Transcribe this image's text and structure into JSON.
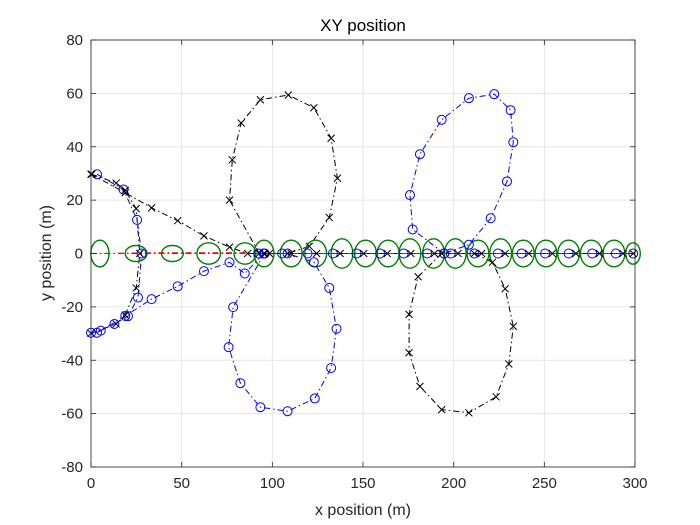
{
  "chart_data": {
    "type": "line",
    "title": "XY position",
    "xlabel": "x position (m)",
    "ylabel": "y position (m)",
    "xlim": [
      0,
      300
    ],
    "ylim": [
      -80,
      80
    ],
    "xticks": [
      0,
      50,
      100,
      150,
      200,
      250,
      300
    ],
    "yticks": [
      -80,
      -60,
      -40,
      -20,
      0,
      20,
      40,
      60,
      80
    ],
    "xtick_labels": [
      "0",
      "50",
      "100",
      "150",
      "200",
      "250",
      "300"
    ],
    "ytick_labels": [
      "-80",
      "-60",
      "-40",
      "-20",
      "0",
      "20",
      "40",
      "60",
      "80"
    ],
    "grid": true,
    "colors": {
      "blue": "#0000ff",
      "black": "#000000",
      "green": "#008000",
      "red": "#ff0000",
      "grid": "#e6e6e6",
      "axis": "#262626"
    },
    "series": [
      {
        "color": "#0000ff",
        "marker": "o",
        "linestyle": "dashdot",
        "x": [
          3.3,
          17.9,
          25.4,
          27.9,
          25.9,
          20.4,
          12.9,
          5.4,
          0.0
        ],
        "y": [
          29.7,
          24.0,
          12.6,
          0.0,
          -16.5,
          -23.5,
          -26.4,
          -28.9,
          -29.7
        ]
      },
      {
        "color": "#000000",
        "marker": "x",
        "linestyle": "dashdot",
        "x": [
          0.4,
          13.9,
          18.9,
          24.9,
          26.9,
          24.9,
          18.9,
          13.9,
          0.0
        ],
        "y": [
          29.7,
          26.4,
          23.7,
          16.8,
          0.0,
          -12.9,
          -23.1,
          -26.4,
          -29.9
        ]
      },
      {
        "color": "#000000",
        "marker": "x",
        "linestyle": "dashdot",
        "x": [
          0.0,
          18.9,
          33.4,
          47.8,
          62.3,
          76.4,
          86.4,
          95.3
        ],
        "y": [
          29.7,
          22.8,
          17.1,
          12.3,
          6.6,
          2.4,
          0.0,
          0.0
        ]
      },
      {
        "color": "#0000ff",
        "marker": "o",
        "linestyle": "dashdot",
        "x": [
          3.3,
          18.9,
          33.4,
          47.8,
          62.3,
          76.4,
          84.8,
          95.3
        ],
        "y": [
          -29.7,
          -23.4,
          -17.1,
          -12.3,
          -6.6,
          -3.3,
          -7.5,
          0.0
        ]
      },
      {
        "color": "#000000",
        "marker": "x",
        "linestyle": "dashdot",
        "x": [
          92.8,
          76.4,
          77.9,
          82.8,
          93.4,
          108.8,
          122.9,
          132.4,
          135.9,
          131.4,
          120.4,
          108.4,
          95.8
        ],
        "y": [
          0.0,
          20.0,
          35.1,
          48.9,
          57.6,
          59.4,
          54.6,
          43.2,
          28.2,
          13.5,
          2.7,
          0.0,
          0.0
        ]
      },
      {
        "color": "#0000ff",
        "marker": "o",
        "linestyle": "dashdot",
        "x": [
          95.8,
          78.4,
          75.9,
          82.4,
          93.4,
          108.4,
          123.4,
          132.4,
          135.4,
          131.4,
          122.9,
          108.4,
          95.3
        ],
        "y": [
          0.0,
          -20.1,
          -35.1,
          -48.6,
          -57.6,
          -59.1,
          -54.3,
          -42.9,
          -28.2,
          -12.9,
          -3.3,
          0.0,
          0.0
        ]
      },
      {
        "color": "#0000ff",
        "marker": "o",
        "linestyle": "dashdot",
        "x": [
          194.8,
          177.4,
          175.9,
          181.4,
          193.4,
          208.4,
          222.4,
          231.4,
          232.9,
          229.4,
          220.4,
          208.4,
          194.8
        ],
        "y": [
          0.0,
          9.0,
          21.9,
          37.2,
          50.1,
          58.2,
          59.7,
          53.7,
          41.7,
          27.0,
          13.2,
          3.3,
          0.0
        ]
      },
      {
        "color": "#000000",
        "marker": "x",
        "linestyle": "dashdot",
        "x": [
          193.4,
          180.4,
          175.4,
          175.4,
          181.4,
          193.4,
          208.4,
          223.4,
          230.4,
          232.9,
          228.4,
          221.4,
          211.4
        ],
        "y": [
          0.0,
          -8.7,
          -22.8,
          -37.2,
          -49.8,
          -58.5,
          -59.7,
          -53.7,
          -41.4,
          -27.3,
          -13.2,
          -3.3,
          0.0
        ]
      },
      {
        "color": "#0000ff",
        "marker": "o",
        "linestyle": "dashdot",
        "x": [
          92.4,
          105.4,
          119.4,
          133.4,
          146.4,
          159.4,
          172.4,
          185.4,
          198.4,
          211.4,
          224.4,
          237.4,
          250.4,
          263.4,
          276.4,
          289.4,
          299.0
        ],
        "y": [
          0.0,
          0.0,
          0.0,
          0.0,
          0.0,
          0.0,
          0.0,
          0.0,
          0.0,
          0.0,
          0.0,
          0.0,
          0.0,
          0.0,
          0.0,
          0.0,
          0.0
        ]
      },
      {
        "color": "#000000",
        "marker": "x",
        "linestyle": "dashdot",
        "x": [
          98.4,
          110.4,
          124.4,
          137.4,
          150.4,
          163.4,
          176.4,
          189.4,
          202.4,
          215.4,
          228.4,
          241.4,
          254.4,
          267.4,
          280.4,
          293.4,
          299.0
        ],
        "y": [
          0.0,
          0.0,
          0.0,
          0.0,
          0.0,
          0.0,
          0.0,
          0.0,
          0.0,
          0.0,
          0.0,
          0.0,
          0.0,
          0.0,
          0.0,
          0.0,
          0.0
        ]
      },
      {
        "color": "#ff0000",
        "marker": "",
        "linestyle": "dashdot",
        "x": [
          0.0,
          40.0,
          80.0,
          95.0
        ],
        "y": [
          0.0,
          0.3,
          0.3,
          0.0
        ]
      },
      {
        "color": "#008000",
        "marker": "",
        "linestyle": "dashdot",
        "x": [
          0.0,
          299.0
        ],
        "y": [
          0.0,
          0.0
        ]
      }
    ],
    "ellipses": {
      "color": "#008000",
      "centers_x": [
        4.9,
        24.9,
        44.9,
        64.9,
        84.9,
        95.4,
        110.4,
        123.9,
        138.4,
        151.4,
        163.9,
        175.9,
        188.9,
        200.9,
        213.4,
        225.9,
        238.4,
        250.9,
        263.4,
        275.9,
        288.4,
        298.9
      ],
      "center_y": 0,
      "radius_x": [
        5.0,
        6.0,
        6.0,
        6.5,
        6.0,
        5.5,
        6.0,
        6.0,
        6.0,
        6.0,
        6.0,
        6.0,
        6.0,
        6.0,
        6.0,
        6.0,
        6.0,
        6.0,
        6.0,
        6.0,
        6.0,
        4.0
      ],
      "radius_y": [
        5.0,
        3.0,
        3.0,
        4.0,
        4.0,
        5.0,
        5.0,
        5.0,
        5.5,
        5.0,
        5.0,
        5.5,
        5.5,
        5.5,
        5.0,
        5.5,
        5.0,
        5.0,
        5.0,
        5.0,
        5.0,
        4.0
      ]
    }
  }
}
